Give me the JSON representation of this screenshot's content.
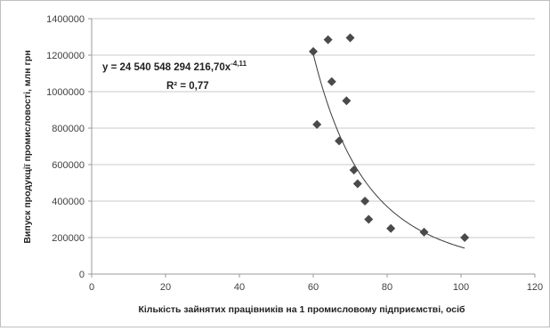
{
  "chart_data": {
    "type": "scatter",
    "xlabel": "Кількість зайнятих працівників на 1 промисловому підприємстві, осіб",
    "ylabel": "Випуск продукції промисловості, млн грн",
    "xlim": [
      0,
      120
    ],
    "ylim": [
      0,
      1400000
    ],
    "x_ticks": [
      0,
      20,
      40,
      60,
      80,
      100,
      120
    ],
    "y_ticks": [
      0,
      200000,
      400000,
      600000,
      800000,
      1000000,
      1200000,
      1400000
    ],
    "x_tick_labels": [
      "0",
      "20",
      "40",
      "60",
      "80",
      "100",
      "120"
    ],
    "y_tick_labels": [
      "0",
      "200000",
      "400000",
      "600000",
      "800000",
      "1000000",
      "1200000",
      "1400000"
    ],
    "grid": "horizontal",
    "marker": "diamond",
    "marker_color": "#4a4a4a",
    "points": [
      {
        "x": 60,
        "y": 1220000
      },
      {
        "x": 61,
        "y": 820000
      },
      {
        "x": 64,
        "y": 1285000
      },
      {
        "x": 65,
        "y": 1055000
      },
      {
        "x": 67,
        "y": 730000
      },
      {
        "x": 69,
        "y": 950000
      },
      {
        "x": 70,
        "y": 1295000
      },
      {
        "x": 71,
        "y": 570000
      },
      {
        "x": 72,
        "y": 495000
      },
      {
        "x": 74,
        "y": 400000
      },
      {
        "x": 75,
        "y": 300000
      },
      {
        "x": 81,
        "y": 250000
      },
      {
        "x": 90,
        "y": 230000
      },
      {
        "x": 101,
        "y": 200000
      }
    ],
    "trendline": {
      "type": "power",
      "coefficient": 24540548294216.7,
      "exponent": -4.11,
      "x_range": [
        60,
        101
      ],
      "equation_prefix": "y = 24 540 548 294 216,70x",
      "equation_exponent": "-4,11",
      "r_squared_label": "R² = 0,77"
    }
  }
}
